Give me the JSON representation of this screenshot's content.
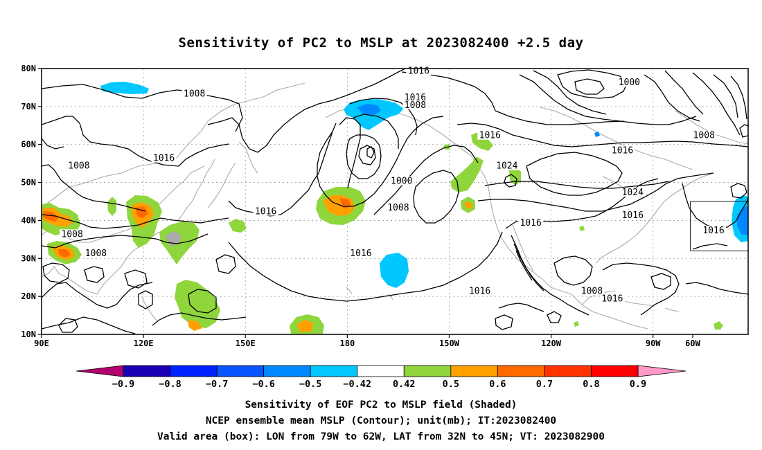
{
  "title": "Sensitivity of PC2 to MSLP at 2023082400 +2.5 day",
  "map": {
    "lon_range": [
      90,
      298
    ],
    "lat_range": [
      10,
      80
    ],
    "lat_ticks": [
      {
        "lat": 80,
        "label": "80N"
      },
      {
        "lat": 70,
        "label": "70N"
      },
      {
        "lat": 60,
        "label": "60N"
      },
      {
        "lat": 50,
        "label": "50N"
      },
      {
        "lat": 40,
        "label": "40N"
      },
      {
        "lat": 30,
        "label": "30N"
      },
      {
        "lat": 20,
        "label": "20N"
      },
      {
        "lat": 10,
        "label": "10N"
      }
    ],
    "lon_ticks": [
      {
        "lon": 90,
        "label": "90E"
      },
      {
        "lon": 120,
        "label": "120E"
      },
      {
        "lon": 150,
        "label": "150E"
      },
      {
        "lon": 180,
        "label": "180"
      },
      {
        "lon": 210,
        "label": "150W"
      },
      {
        "lon": 240,
        "label": "120W"
      },
      {
        "lon": 270,
        "label": "90W"
      },
      {
        "lon": 300,
        "label": "60W"
      }
    ],
    "valid_box": {
      "lon_min": 281,
      "lon_max": 298,
      "lat_min": 32,
      "lat_max": 45
    },
    "contour_labels": [
      {
        "text": "1016",
        "lon": 201,
        "lat": 79
      },
      {
        "text": "1000",
        "lon": 263,
        "lat": 76
      },
      {
        "text": "1008",
        "lon": 135,
        "lat": 73
      },
      {
        "text": "1016",
        "lon": 200,
        "lat": 72
      },
      {
        "text": "1008",
        "lon": 200,
        "lat": 70
      },
      {
        "text": "1016",
        "lon": 222,
        "lat": 62
      },
      {
        "text": "1008",
        "lon": 285,
        "lat": 62
      },
      {
        "text": "1016",
        "lon": 261,
        "lat": 58
      },
      {
        "text": "1016",
        "lon": 126,
        "lat": 56
      },
      {
        "text": "1008",
        "lon": 101,
        "lat": 54
      },
      {
        "text": "1024",
        "lon": 227,
        "lat": 54
      },
      {
        "text": "1000",
        "lon": 196,
        "lat": 50
      },
      {
        "text": "1024",
        "lon": 264,
        "lat": 47
      },
      {
        "text": "1008",
        "lon": 195,
        "lat": 43
      },
      {
        "text": "1016",
        "lon": 156,
        "lat": 42
      },
      {
        "text": "1016",
        "lon": 264,
        "lat": 41
      },
      {
        "text": "1016",
        "lon": 234,
        "lat": 39
      },
      {
        "text": "1016",
        "lon": 307,
        "lat": 37
      },
      {
        "text": "1008",
        "lon": 99,
        "lat": 36
      },
      {
        "text": "1008",
        "lon": 106,
        "lat": 31
      },
      {
        "text": "1016",
        "lon": 184,
        "lat": 31
      },
      {
        "text": "1016",
        "lon": 219,
        "lat": 21
      },
      {
        "text": "1008",
        "lon": 252,
        "lat": 21
      },
      {
        "text": "1016",
        "lon": 258,
        "lat": 19
      }
    ]
  },
  "colorbar": {
    "colors": [
      "#1a00b4",
      "#0022ff",
      "#0a55ff",
      "#0088ff",
      "#00c8ff",
      "#ffffff",
      "#8fd63d",
      "#ffa000",
      "#ff6a00",
      "#ff3200",
      "#ff0000"
    ],
    "low_triangle_color": "#b4006e",
    "high_triangle_color": "#ff9ac8",
    "labels": [
      "−0.9",
      "−0.8",
      "−0.7",
      "−0.6",
      "−0.5",
      "−0.42",
      "0.42",
      "0.5",
      "0.6",
      "0.7",
      "0.8",
      "0.9"
    ]
  },
  "footer": {
    "line1": "Sensitivity of EOF PC2 to MSLP field (Shaded)",
    "line2": "NCEP ensemble mean MSLP (Contour); unit(mb); IT:2023082400",
    "line3": "Valid area (box): LON from 79W to 62W, LAT from 32N to 45N; VT: 2023082900"
  }
}
